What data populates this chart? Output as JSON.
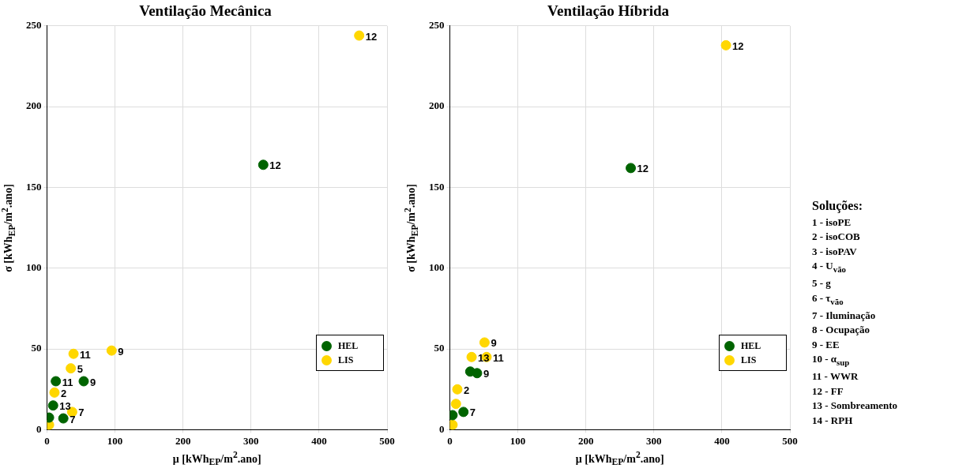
{
  "chart_data": [
    {
      "type": "scatter",
      "title": "Ventilação Mecânica",
      "xlabel": "μ [kWh$_{EP}$/m$^{2}$.ano]",
      "ylabel": "σ [kWh$_{EP}$/m$^{2}$.ano]",
      "xlim": [
        0,
        500
      ],
      "ylim": [
        0,
        250
      ],
      "xticks": [
        0,
        100,
        200,
        300,
        400,
        500
      ],
      "yticks": [
        0,
        50,
        100,
        150,
        200,
        250
      ],
      "grid": true,
      "legend": "bottom right",
      "marker": "circle",
      "series": [
        {
          "name": "HEL",
          "color": "#006400",
          "x": [
            3,
            24,
            54,
            13,
            318,
            9
          ],
          "values": [
            7.5,
            7,
            30,
            30,
            164,
            15
          ]
        },
        {
          "name": "LIS",
          "color": "#ffd700",
          "x": [
            3,
            11,
            35,
            37,
            95,
            39,
            459
          ],
          "values": [
            3,
            23,
            38,
            11,
            49,
            47,
            244
          ]
        }
      ],
      "annotations": [
        {
          "text": "7",
          "x": 24,
          "y": 7
        },
        {
          "text": "9",
          "x": 54,
          "y": 30
        },
        {
          "text": "11",
          "x": 13,
          "y": 30
        },
        {
          "text": "12",
          "x": 318,
          "y": 164
        },
        {
          "text": "13",
          "x": 9,
          "y": 15
        },
        {
          "text": "2",
          "x": 11,
          "y": 23
        },
        {
          "text": "5",
          "x": 35,
          "y": 38
        },
        {
          "text": "7",
          "x": 37,
          "y": 11
        },
        {
          "text": "9",
          "x": 95,
          "y": 49
        },
        {
          "text": "11",
          "x": 39,
          "y": 47
        },
        {
          "text": "12",
          "x": 459,
          "y": 244
        }
      ]
    },
    {
      "type": "scatter",
      "title": "Ventilação Híbrida",
      "xlabel": "μ [kWh$_{EP}$/m$^{2}$.ano]",
      "ylabel": "σ [kWh$_{EP}$/m$^{2}$.ano]",
      "xlim": [
        0,
        500
      ],
      "ylim": [
        0,
        250
      ],
      "xticks": [
        0,
        100,
        200,
        300,
        400,
        500
      ],
      "yticks": [
        0,
        50,
        100,
        150,
        200,
        250
      ],
      "grid": true,
      "legend": "bottom right",
      "marker": "circle",
      "series": [
        {
          "name": "HEL",
          "color": "#006400",
          "x": [
            4,
            20,
            30,
            40,
            266
          ],
          "values": [
            9,
            11,
            36,
            35,
            162
          ]
        },
        {
          "name": "LIS",
          "color": "#ffd700",
          "x": [
            4,
            9,
            11,
            32,
            54,
            51,
            406
          ],
          "values": [
            3,
            16,
            25,
            45,
            45,
            54,
            238
          ]
        }
      ],
      "annotations": [
        "Soluções:",
        "1 - isoPE",
        "2 - isoCOB",
        "3 - isoPAV",
        "4 - U$_{vão}$",
        "5 - g",
        "6 - τ$_{vão}$",
        "7 - Iluminação",
        "8 - Ocupação",
        "9 - EE",
        "10 - α$_{sup}$",
        "11 - WWR",
        "12 - FF",
        "13 - Sombreamento",
        "14 - RPH",
        {
          "text": "7",
          "x": 20,
          "y": 11
        },
        {
          "text": "9",
          "x": 40,
          "y": 35
        },
        {
          "text": "12",
          "x": 266,
          "y": 162
        },
        {
          "text": "2",
          "x": 11,
          "y": 25
        },
        {
          "text": "13",
          "x": 32,
          "y": 45
        },
        {
          "text": "11",
          "x": 54,
          "y": 45
        },
        {
          "text": "9",
          "x": 51,
          "y": 54
        },
        {
          "text": "12",
          "x": 406,
          "y": 238
        }
      ]
    }
  ]
}
